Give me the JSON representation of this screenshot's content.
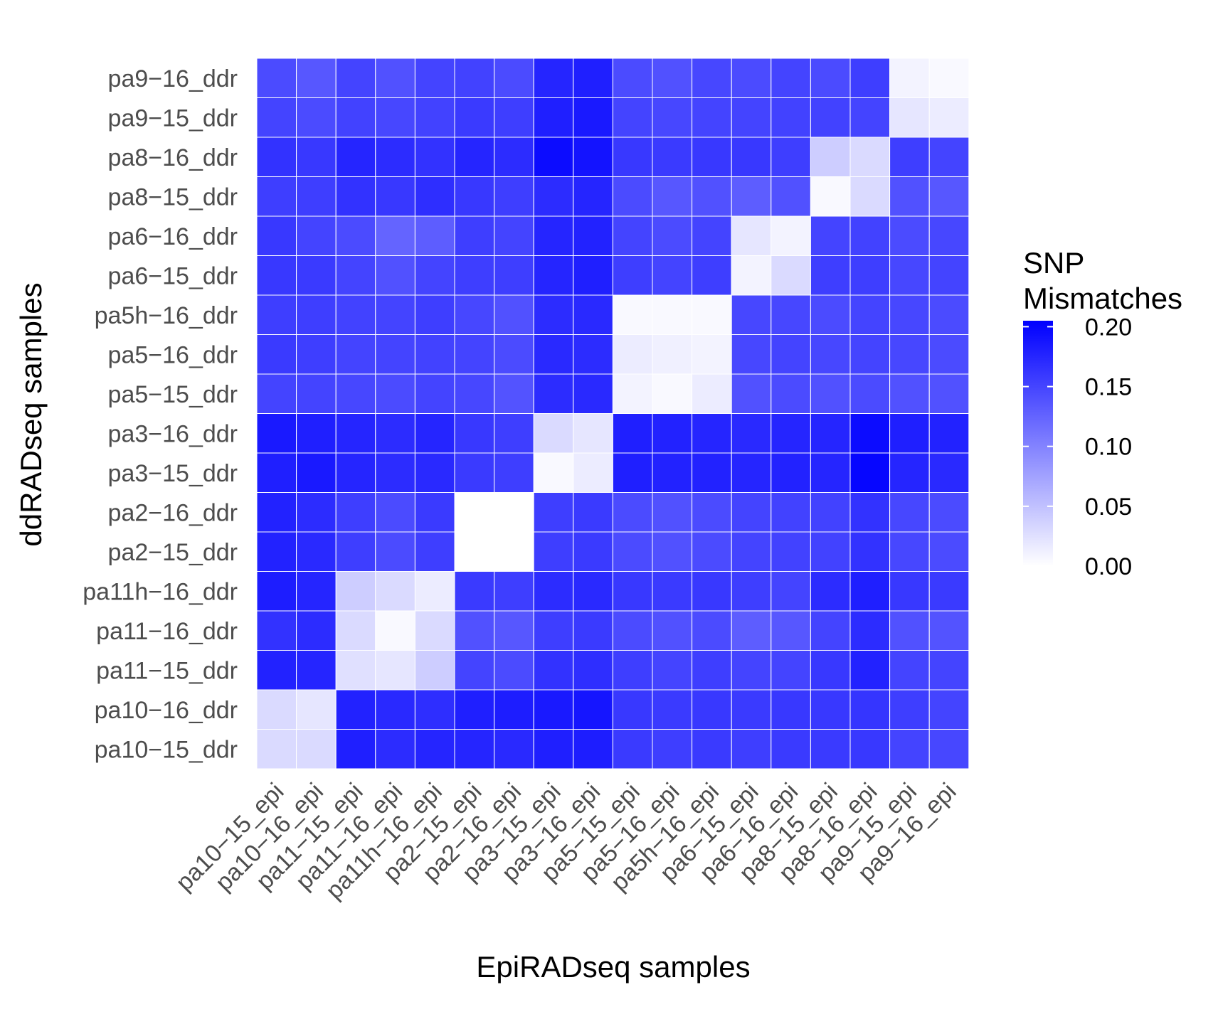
{
  "chart_data": {
    "type": "heatmap",
    "xlabel": "EpiRADseq samples",
    "ylabel": "ddRADseq samples",
    "x_categories": [
      "pa10−15_epi",
      "pa10−16_epi",
      "pa11−15_epi",
      "pa11−16_epi",
      "pa11h−16_epi",
      "pa2−15_epi",
      "pa2−16_epi",
      "pa3−15_epi",
      "pa3−16_epi",
      "pa5−15_epi",
      "pa5−16_epi",
      "pa5h−16_epi",
      "pa6−15_epi",
      "pa6−16_epi",
      "pa8−15_epi",
      "pa8−16_epi",
      "pa9−15_epi",
      "pa9−16_epi"
    ],
    "y_categories_top_to_bottom": [
      "pa9−16_ddr",
      "pa9−15_ddr",
      "pa8−16_ddr",
      "pa8−15_ddr",
      "pa6−16_ddr",
      "pa6−15_ddr",
      "pa5h−16_ddr",
      "pa5−16_ddr",
      "pa5−15_ddr",
      "pa3−16_ddr",
      "pa3−15_ddr",
      "pa2−16_ddr",
      "pa2−15_ddr",
      "pa11h−16_ddr",
      "pa11−16_ddr",
      "pa11−15_ddr",
      "pa10−16_ddr",
      "pa10−15_ddr"
    ],
    "values": [
      [
        0.145,
        0.135,
        0.15,
        0.14,
        0.15,
        0.152,
        0.145,
        0.175,
        0.18,
        0.145,
        0.14,
        0.148,
        0.145,
        0.15,
        0.145,
        0.155,
        0.01,
        0.005
      ],
      [
        0.15,
        0.145,
        0.152,
        0.148,
        0.152,
        0.158,
        0.155,
        0.18,
        0.185,
        0.15,
        0.148,
        0.15,
        0.15,
        0.152,
        0.152,
        0.15,
        0.02,
        0.015
      ],
      [
        0.165,
        0.16,
        0.175,
        0.17,
        0.165,
        0.175,
        0.17,
        0.195,
        0.19,
        0.16,
        0.158,
        0.16,
        0.16,
        0.155,
        0.04,
        0.03,
        0.155,
        0.15
      ],
      [
        0.155,
        0.155,
        0.165,
        0.16,
        0.168,
        0.16,
        0.155,
        0.17,
        0.175,
        0.145,
        0.135,
        0.14,
        0.13,
        0.14,
        0.005,
        0.03,
        0.14,
        0.135
      ],
      [
        0.16,
        0.15,
        0.145,
        0.125,
        0.13,
        0.155,
        0.15,
        0.175,
        0.178,
        0.15,
        0.145,
        0.15,
        0.02,
        0.01,
        0.15,
        0.152,
        0.145,
        0.148
      ],
      [
        0.16,
        0.158,
        0.15,
        0.14,
        0.15,
        0.155,
        0.155,
        0.175,
        0.18,
        0.155,
        0.15,
        0.155,
        0.01,
        0.03,
        0.155,
        0.155,
        0.148,
        0.15
      ],
      [
        0.155,
        0.155,
        0.152,
        0.15,
        0.155,
        0.148,
        0.14,
        0.17,
        0.172,
        0.005,
        0.005,
        0.005,
        0.148,
        0.148,
        0.145,
        0.15,
        0.148,
        0.145
      ],
      [
        0.158,
        0.155,
        0.15,
        0.15,
        0.152,
        0.15,
        0.145,
        0.172,
        0.17,
        0.015,
        0.012,
        0.01,
        0.148,
        0.15,
        0.148,
        0.15,
        0.148,
        0.145
      ],
      [
        0.15,
        0.15,
        0.148,
        0.145,
        0.15,
        0.148,
        0.138,
        0.17,
        0.172,
        0.01,
        0.005,
        0.015,
        0.14,
        0.145,
        0.14,
        0.145,
        0.14,
        0.14
      ],
      [
        0.185,
        0.18,
        0.175,
        0.17,
        0.175,
        0.16,
        0.155,
        0.03,
        0.02,
        0.18,
        0.178,
        0.175,
        0.172,
        0.175,
        0.175,
        0.195,
        0.18,
        0.178
      ],
      [
        0.18,
        0.185,
        0.175,
        0.17,
        0.172,
        0.158,
        0.155,
        0.005,
        0.015,
        0.18,
        0.178,
        0.178,
        0.175,
        0.178,
        0.175,
        0.2,
        0.175,
        0.172
      ],
      [
        0.178,
        0.17,
        0.155,
        0.145,
        0.158,
        0.0,
        0.0,
        0.155,
        0.158,
        0.145,
        0.14,
        0.145,
        0.15,
        0.152,
        0.152,
        0.165,
        0.148,
        0.145
      ],
      [
        0.178,
        0.172,
        0.155,
        0.145,
        0.155,
        0.0,
        0.0,
        0.155,
        0.158,
        0.145,
        0.14,
        0.145,
        0.15,
        0.152,
        0.152,
        0.165,
        0.148,
        0.145
      ],
      [
        0.182,
        0.175,
        0.04,
        0.03,
        0.015,
        0.158,
        0.155,
        0.17,
        0.172,
        0.16,
        0.158,
        0.16,
        0.155,
        0.15,
        0.17,
        0.18,
        0.16,
        0.158
      ],
      [
        0.165,
        0.17,
        0.03,
        0.005,
        0.03,
        0.14,
        0.135,
        0.155,
        0.158,
        0.145,
        0.14,
        0.145,
        0.13,
        0.135,
        0.15,
        0.17,
        0.14,
        0.138
      ],
      [
        0.178,
        0.175,
        0.025,
        0.02,
        0.04,
        0.15,
        0.145,
        0.165,
        0.168,
        0.155,
        0.15,
        0.155,
        0.15,
        0.15,
        0.16,
        0.178,
        0.15,
        0.15
      ],
      [
        0.03,
        0.02,
        0.178,
        0.172,
        0.168,
        0.18,
        0.182,
        0.185,
        0.188,
        0.16,
        0.158,
        0.16,
        0.158,
        0.16,
        0.16,
        0.162,
        0.155,
        0.15
      ],
      [
        0.03,
        0.03,
        0.18,
        0.17,
        0.175,
        0.175,
        0.172,
        0.18,
        0.182,
        0.158,
        0.155,
        0.158,
        0.155,
        0.158,
        0.158,
        0.16,
        0.15,
        0.148
      ]
    ],
    "colorbar": {
      "title_lines": [
        "SNP",
        "Mismatches"
      ],
      "ticks": [
        0.0,
        0.05,
        0.1,
        0.15,
        0.2
      ],
      "tick_labels": [
        "0.00",
        "0.05",
        "0.10",
        "0.15",
        "0.20"
      ],
      "range": [
        0,
        0.205
      ],
      "low_color": "#ffffff",
      "high_color": "#0000ff"
    },
    "grid": true,
    "legend_position": "right"
  }
}
